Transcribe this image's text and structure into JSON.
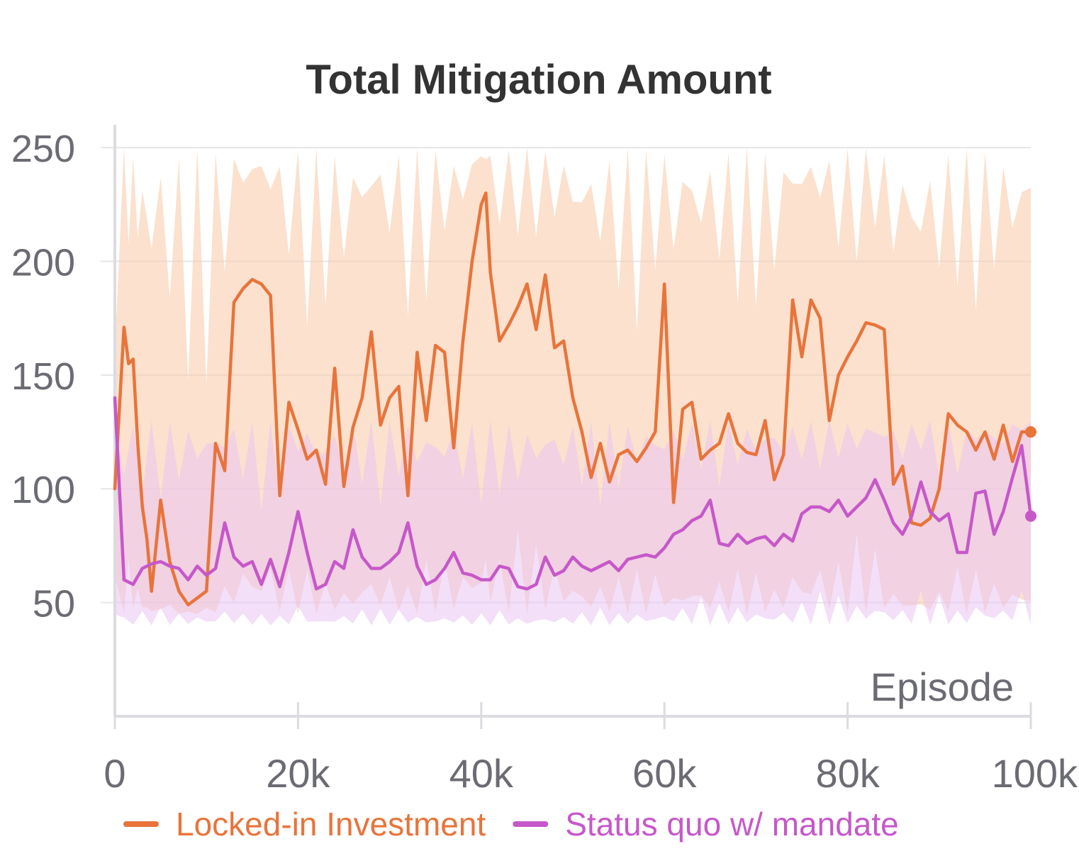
{
  "chart_data": {
    "type": "line",
    "title": "Total Mitigation Amount",
    "xlabel": "Episode",
    "ylabel": "",
    "xlim": [
      0,
      100000
    ],
    "ylim": [
      0,
      260
    ],
    "x_ticks": [
      0,
      20000,
      40000,
      60000,
      80000,
      100000
    ],
    "x_tick_labels": [
      "0",
      "20k",
      "40k",
      "60k",
      "80k",
      "100k"
    ],
    "y_ticks": [
      50,
      100,
      150,
      200,
      250
    ],
    "y_tick_labels": [
      "50",
      "100",
      "150",
      "200",
      "250"
    ],
    "grid": true,
    "legend_position": "bottom",
    "colors": {
      "title": "#333333",
      "tick": "#6b6b73",
      "grid": "#e6e6ea",
      "axis": "#dcdce0"
    },
    "series": [
      {
        "name": "Locked-in Investment",
        "color": "#e8743b",
        "band_color": "#f7c9a6",
        "band": {
          "lower": 45,
          "upper": 250
        },
        "x": [
          0,
          1000,
          1500,
          2000,
          2500,
          3000,
          3500,
          4000,
          5000,
          6000,
          7000,
          8000,
          9000,
          10000,
          11000,
          12000,
          13000,
          14000,
          15000,
          16000,
          17000,
          18000,
          19000,
          20000,
          21000,
          22000,
          23000,
          24000,
          25000,
          26000,
          27000,
          28000,
          29000,
          30000,
          31000,
          32000,
          33000,
          34000,
          35000,
          36000,
          37000,
          38000,
          39000,
          40000,
          40500,
          41000,
          42000,
          43000,
          44000,
          45000,
          46000,
          47000,
          48000,
          49000,
          50000,
          51000,
          52000,
          53000,
          54000,
          55000,
          56000,
          57000,
          58000,
          59000,
          60000,
          61000,
          62000,
          63000,
          64000,
          65000,
          66000,
          67000,
          68000,
          69000,
          70000,
          71000,
          72000,
          73000,
          74000,
          75000,
          76000,
          77000,
          78000,
          79000,
          80000,
          81000,
          82000,
          83000,
          84000,
          85000,
          86000,
          87000,
          88000,
          89000,
          90000,
          91000,
          92000,
          93000,
          94000,
          95000,
          96000,
          97000,
          98000,
          99000,
          100000
        ],
        "values": [
          100,
          171,
          155,
          157,
          120,
          92,
          78,
          55,
          95,
          68,
          55,
          49,
          52,
          55,
          120,
          108,
          182,
          188,
          192,
          190,
          185,
          97,
          138,
          126,
          113,
          117,
          102,
          153,
          101,
          127,
          140,
          169,
          128,
          140,
          145,
          97,
          160,
          130,
          163,
          160,
          118,
          165,
          200,
          225,
          230,
          195,
          165,
          172,
          180,
          190,
          170,
          194,
          162,
          165,
          140,
          125,
          105,
          120,
          103,
          115,
          117,
          112,
          118,
          125,
          190,
          94,
          135,
          138,
          113,
          117,
          120,
          133,
          120,
          116,
          115,
          130,
          104,
          115,
          183,
          158,
          183,
          175,
          130,
          150,
          158,
          165,
          173,
          172,
          170,
          102,
          110,
          85,
          84,
          87,
          100,
          133,
          128,
          125,
          117,
          125,
          113,
          128,
          112,
          125,
          125
        ]
      },
      {
        "name": "Status quo w/ mandate",
        "color": "#c658c9",
        "band_color": "#e9c4f2",
        "band": {
          "lower": 40,
          "upper": 130
        },
        "x": [
          0,
          1000,
          2000,
          3000,
          4000,
          5000,
          6000,
          7000,
          8000,
          9000,
          10000,
          11000,
          12000,
          13000,
          14000,
          15000,
          16000,
          17000,
          18000,
          19000,
          20000,
          21000,
          22000,
          23000,
          24000,
          25000,
          26000,
          27000,
          28000,
          29000,
          30000,
          31000,
          32000,
          33000,
          34000,
          35000,
          36000,
          37000,
          38000,
          39000,
          40000,
          41000,
          42000,
          43000,
          44000,
          45000,
          46000,
          47000,
          48000,
          49000,
          50000,
          51000,
          52000,
          53000,
          54000,
          55000,
          56000,
          57000,
          58000,
          59000,
          60000,
          61000,
          62000,
          63000,
          64000,
          65000,
          66000,
          67000,
          68000,
          69000,
          70000,
          71000,
          72000,
          73000,
          74000,
          75000,
          76000,
          77000,
          78000,
          79000,
          80000,
          81000,
          82000,
          83000,
          84000,
          85000,
          86000,
          87000,
          88000,
          89000,
          90000,
          91000,
          92000,
          93000,
          94000,
          95000,
          96000,
          97000,
          98000,
          99000,
          100000
        ],
        "values": [
          140,
          60,
          58,
          65,
          67,
          68,
          66,
          65,
          60,
          66,
          62,
          65,
          85,
          70,
          66,
          68,
          58,
          69,
          57,
          72,
          90,
          72,
          56,
          58,
          68,
          65,
          82,
          70,
          65,
          65,
          68,
          72,
          85,
          66,
          58,
          60,
          65,
          72,
          63,
          62,
          60,
          60,
          66,
          65,
          57,
          56,
          58,
          70,
          62,
          64,
          70,
          66,
          64,
          66,
          68,
          64,
          69,
          70,
          71,
          70,
          74,
          80,
          82,
          86,
          88,
          95,
          76,
          75,
          80,
          76,
          78,
          79,
          75,
          80,
          77,
          89,
          92,
          92,
          90,
          95,
          88,
          92,
          96,
          104,
          95,
          85,
          80,
          88,
          103,
          90,
          86,
          89,
          72,
          72,
          98,
          99,
          80,
          90,
          105,
          119,
          88
        ]
      }
    ]
  }
}
